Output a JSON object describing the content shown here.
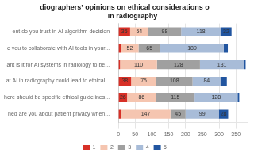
{
  "chart_data": {
    "type": "bar",
    "orientation": "horizontal",
    "stacked": true,
    "title": "diographers’ opinions on ethical considerations o\n        in radiography",
    "categories": [
      "ent do you trust in AI algorithm decision",
      "e you to collaborate with AI tools in your...",
      "ant is it for AI systems in radiology to be...",
      "at AI in radiography could lead to ethical...",
      "here should be specific ethical guidelines...",
      "ned are you about patient privacy when..."
    ],
    "series": [
      {
        "name": "1",
        "color": "#d73027",
        "values": [
          35,
          8,
          5,
          38,
          26,
          8
        ],
        "value_labels": [
          "35",
          null,
          null,
          "38",
          "26",
          null
        ]
      },
      {
        "name": "2",
        "color": "#f5c5b0",
        "values": [
          54,
          52,
          110,
          75,
          86,
          147
        ],
        "value_labels": [
          "54",
          "52",
          "110",
          "75",
          "86",
          "147"
        ]
      },
      {
        "name": "3",
        "color": "#a0a0a0",
        "values": [
          98,
          65,
          128,
          108,
          115,
          45
        ],
        "value_labels": [
          "98",
          "65",
          "128",
          "108",
          "115",
          "45"
        ]
      },
      {
        "name": "4",
        "color": "#a8bcd8",
        "values": [
          118,
          189,
          131,
          84,
          128,
          99
        ],
        "value_labels": [
          "118",
          "189",
          "131",
          "84",
          "128",
          "99"
        ]
      },
      {
        "name": "5",
        "color": "#2155a0",
        "values": [
          32,
          12,
          5,
          18,
          5,
          28
        ],
        "value_labels": [
          "32",
          null,
          null,
          null,
          null,
          "28"
        ]
      }
    ],
    "xlim": [
      0,
      385
    ],
    "xticks": [
      0,
      50,
      100,
      150,
      200,
      250,
      300,
      350
    ],
    "grid": true,
    "legend": "bottom",
    "data_labels": true
  }
}
